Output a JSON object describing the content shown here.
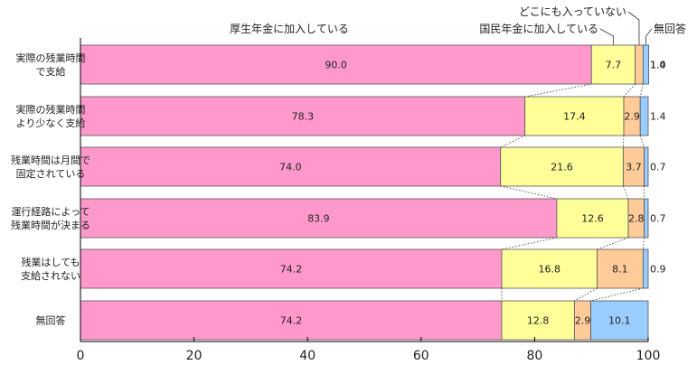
{
  "colors": {
    "kosei": "#ff99cc",
    "kokumin": "#ffff99",
    "none": "#ffcc99",
    "no_answer": "#99ccff"
  },
  "chart_data": {
    "type": "bar",
    "orientation": "horizontal",
    "stacked": true,
    "categories": [
      [
        "実際の残業時間",
        "で支給"
      ],
      [
        "実際の残業時間",
        "より少なく支給"
      ],
      [
        "残業時間は月間で",
        "固定されている"
      ],
      [
        "運行経路によって",
        "残業時間が決まる"
      ],
      [
        "残業はしても",
        "支給されない"
      ],
      [
        "無回答"
      ]
    ],
    "series": [
      {
        "name": "厚生年金に加入している",
        "color_key": "kosei",
        "values": [
          90.0,
          78.3,
          74.0,
          83.9,
          74.2,
          74.2
        ]
      },
      {
        "name": "国民年金に加入している",
        "color_key": "kokumin",
        "values": [
          7.7,
          17.4,
          21.6,
          12.6,
          16.8,
          12.8
        ]
      },
      {
        "name": "どこにも入っていない",
        "color_key": "none",
        "values": [
          1.4,
          2.9,
          3.7,
          2.8,
          8.1,
          2.9
        ]
      },
      {
        "name": "無回答",
        "color_key": "no_answer",
        "values": [
          1.0,
          1.4,
          0.7,
          0.7,
          0.9,
          10.1
        ]
      }
    ],
    "xlim": [
      0,
      100
    ],
    "xticks": [
      "0",
      "20",
      "40",
      "60",
      "80",
      "100"
    ],
    "grid": false,
    "connector_lines": "dotted"
  }
}
